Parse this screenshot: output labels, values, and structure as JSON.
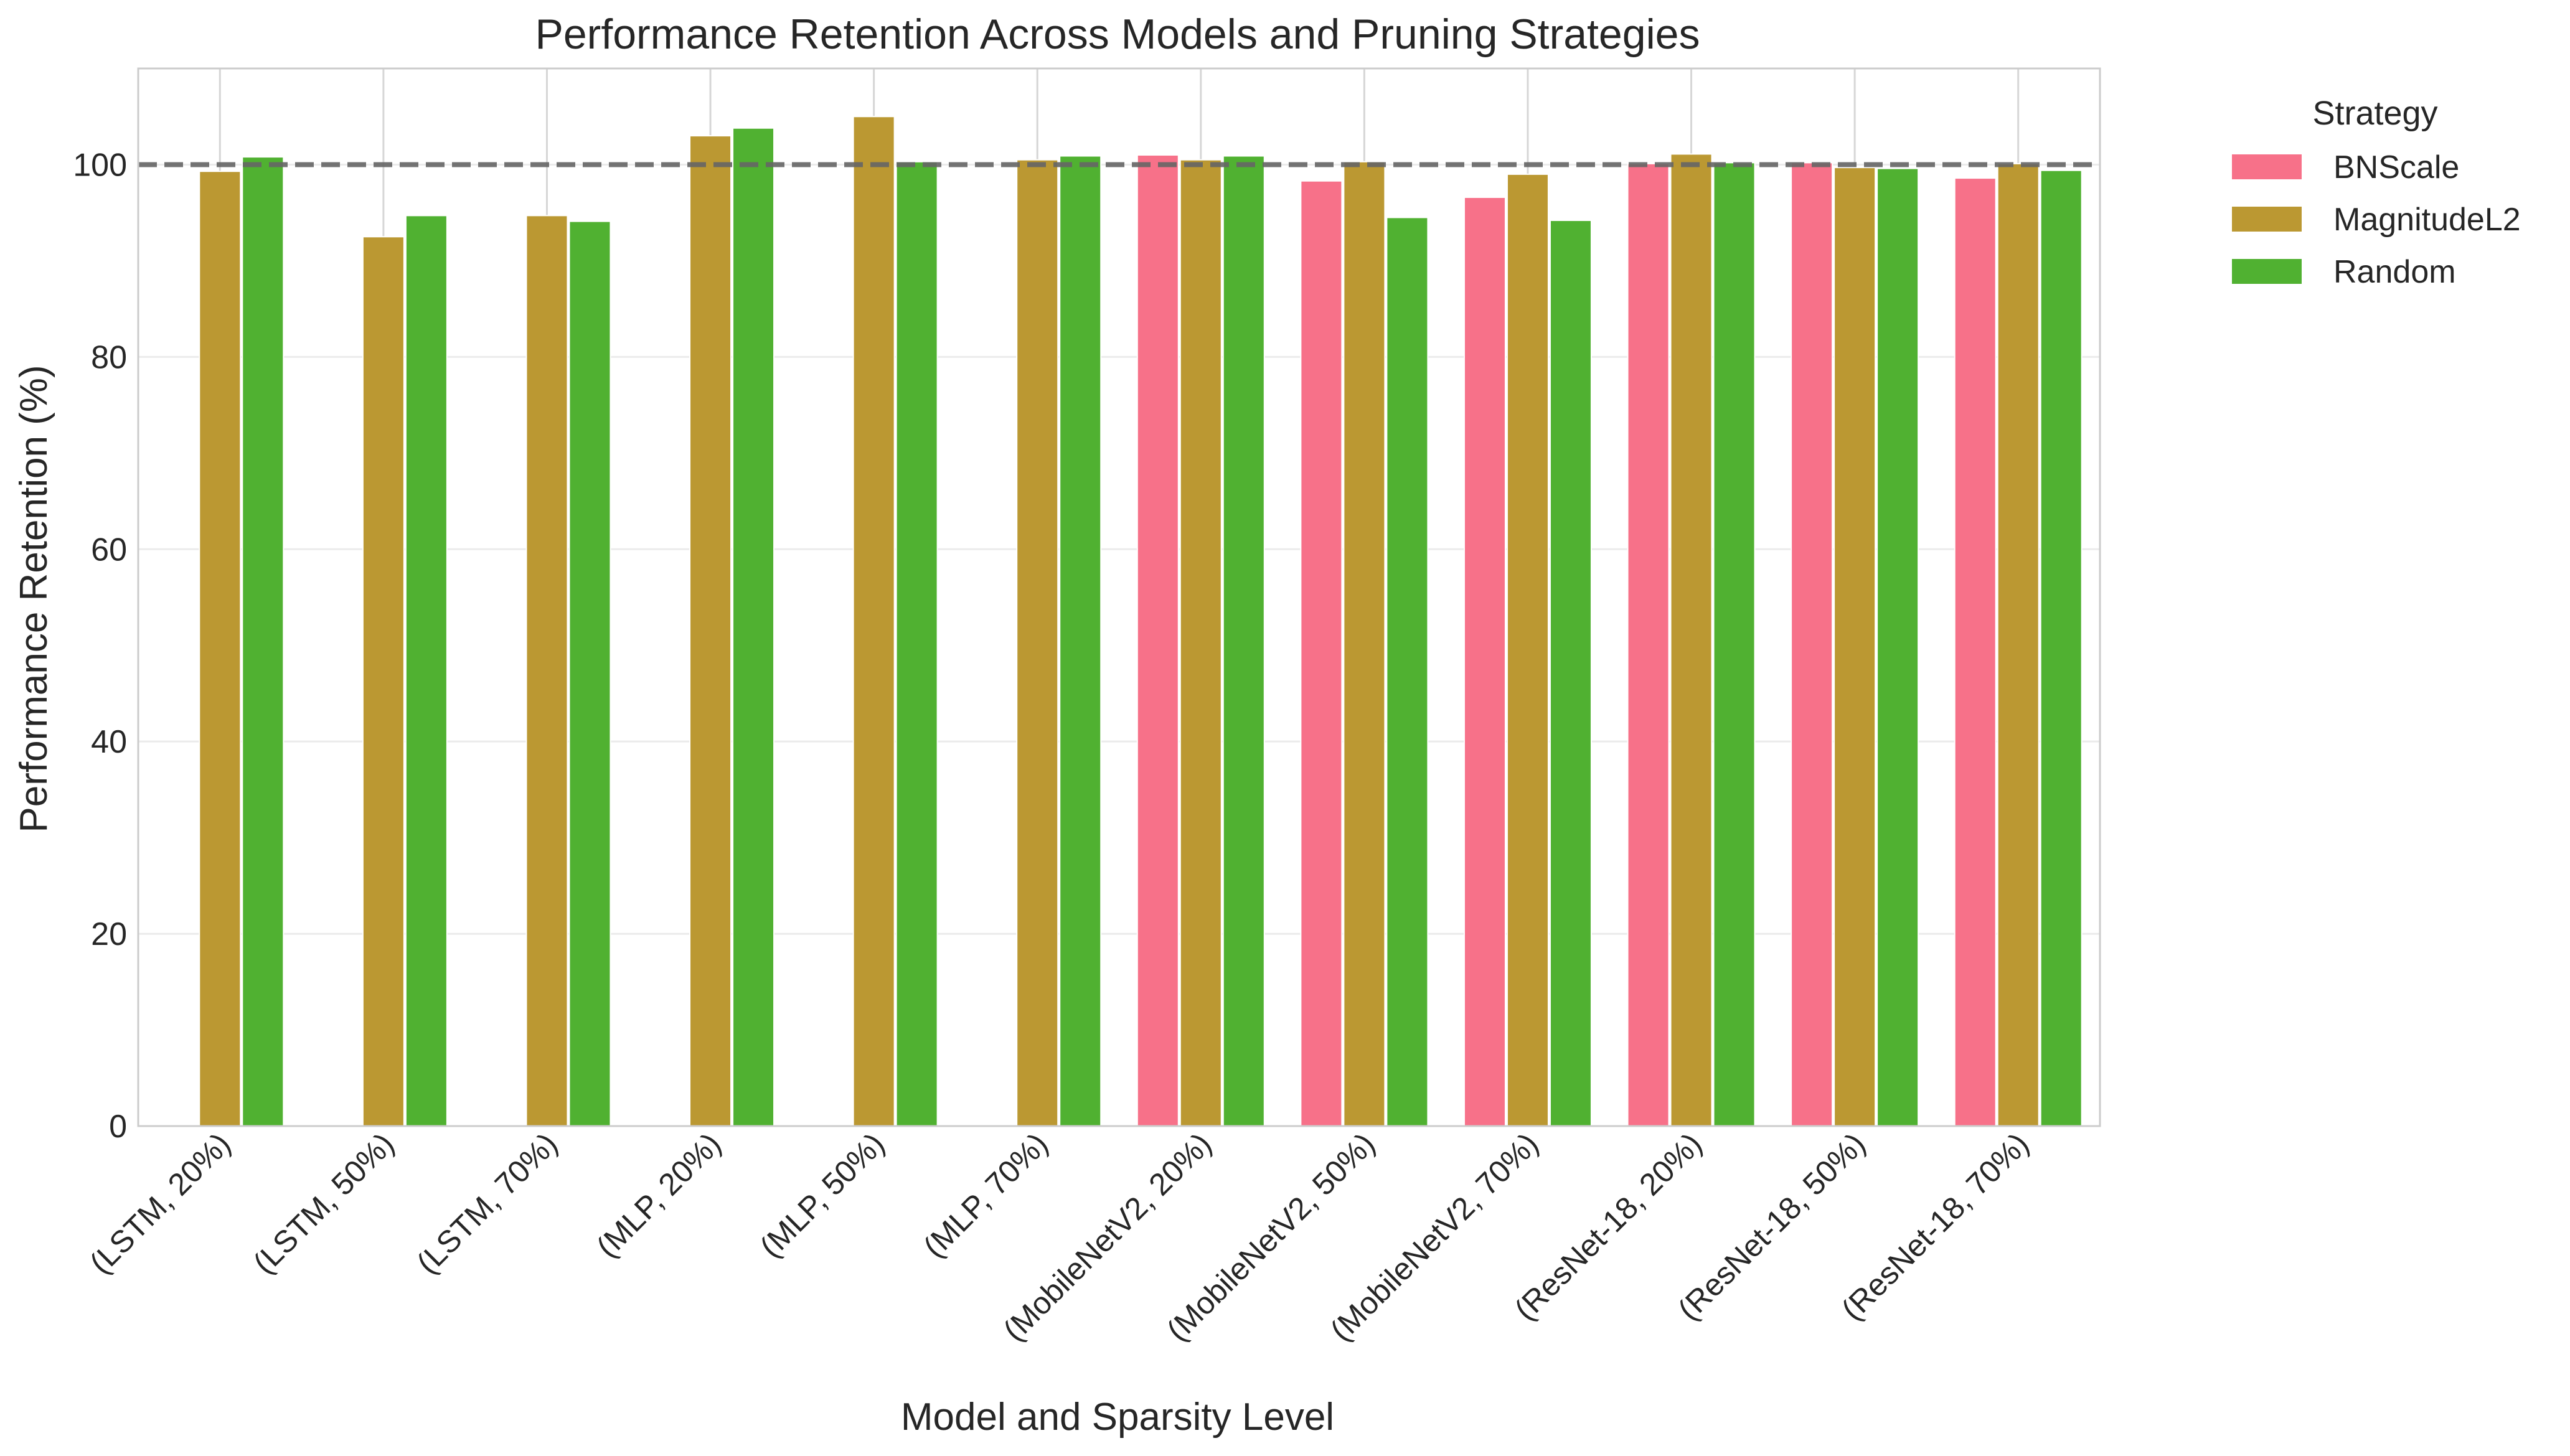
{
  "chart_data": {
    "type": "bar",
    "title": "Performance Retention Across Models and Pruning Strategies",
    "xlabel": "Model and Sparsity Level",
    "ylabel": "Performance Retention (%)",
    "ylim": [
      0,
      110
    ],
    "yticks": [
      0,
      20,
      40,
      60,
      80,
      100
    ],
    "grid": true,
    "reference_line": {
      "value": 100,
      "style": "dashed",
      "color": "#666666"
    },
    "categories": [
      "(LSTM, 20%)",
      "(LSTM, 50%)",
      "(LSTM, 70%)",
      "(MLP, 20%)",
      "(MLP, 50%)",
      "(MLP, 70%)",
      "(MobileNetV2, 20%)",
      "(MobileNetV2, 50%)",
      "(MobileNetV2, 70%)",
      "(ResNet-18, 20%)",
      "(ResNet-18, 50%)",
      "(ResNet-18, 70%)"
    ],
    "legend": {
      "title": "Strategy",
      "placement": "outside-top-right"
    },
    "series": [
      {
        "name": "BNScale",
        "color": "#f77189",
        "values": [
          null,
          null,
          null,
          null,
          null,
          null,
          101.0,
          98.3,
          96.6,
          100.1,
          100.2,
          98.6
        ]
      },
      {
        "name": "MagnitudeL2",
        "color": "#bb9832",
        "values": [
          99.3,
          92.5,
          94.7,
          103.0,
          105.0,
          100.5,
          100.5,
          100.3,
          99.0,
          101.1,
          99.7,
          100.1
        ]
      },
      {
        "name": "Random",
        "color": "#50b131",
        "values": [
          100.8,
          94.7,
          94.1,
          103.8,
          100.3,
          100.9,
          100.9,
          94.5,
          94.2,
          100.2,
          99.6,
          99.4
        ]
      }
    ]
  }
}
